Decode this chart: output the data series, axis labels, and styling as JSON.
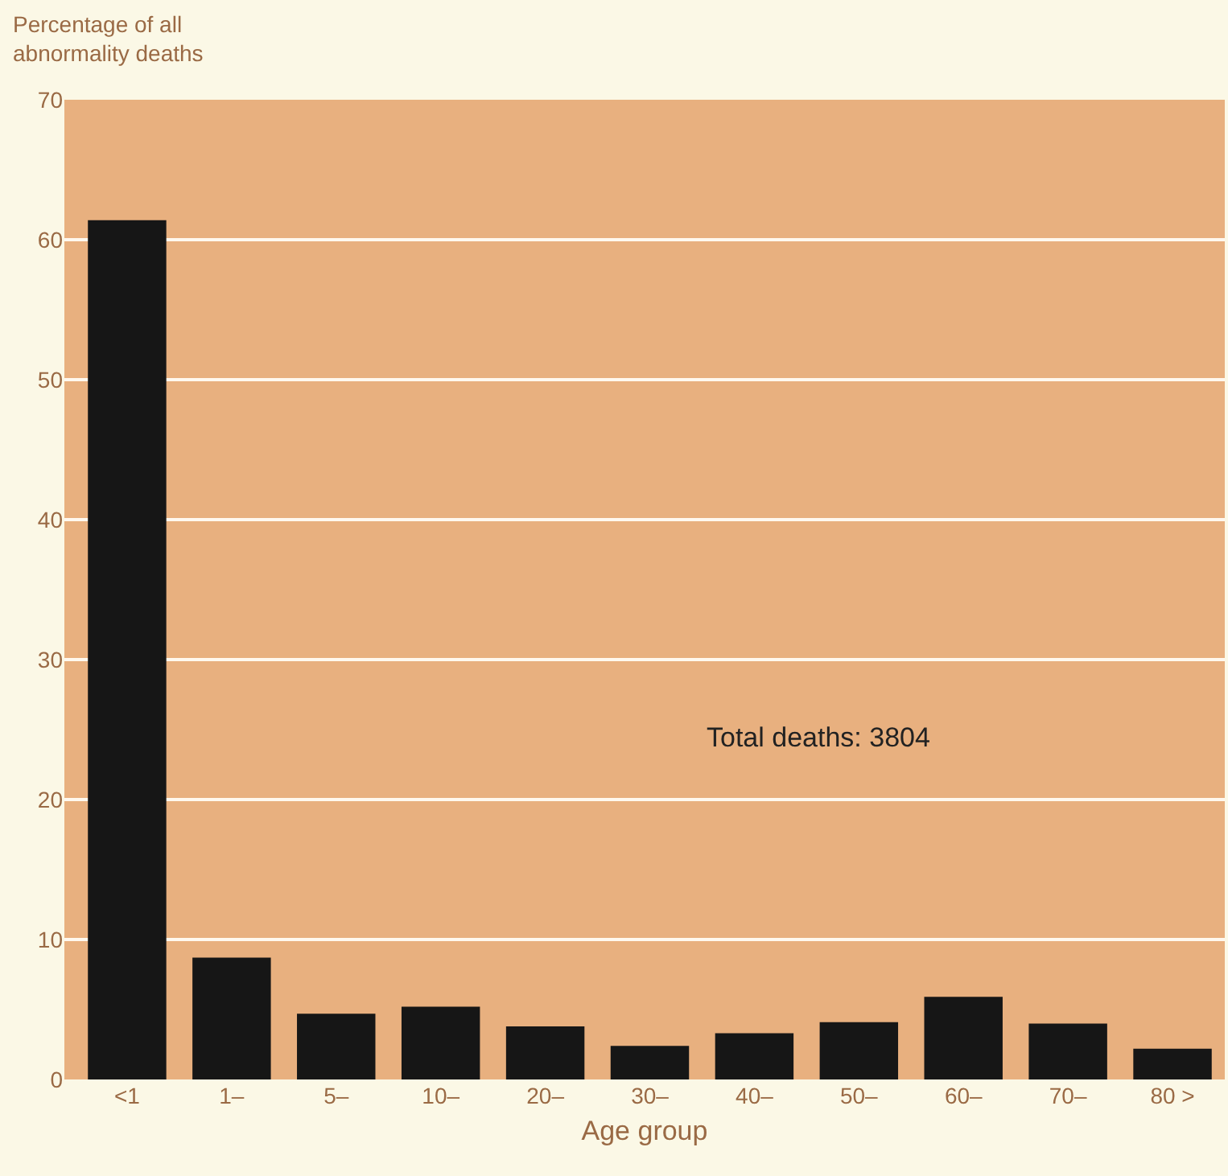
{
  "chart_data": {
    "type": "bar",
    "ylabel": "Percentage of all abnormality deaths",
    "xlabel": "Age group",
    "categories": [
      "<1",
      "1–",
      "5–",
      "10–",
      "20–",
      "30–",
      "40–",
      "50–",
      "60–",
      "70–",
      "80 >"
    ],
    "values": [
      61.4,
      8.7,
      4.7,
      5.2,
      3.8,
      2.4,
      3.3,
      4.1,
      5.9,
      4.0,
      2.2
    ],
    "color": "#161616",
    "ylim": [
      0,
      70
    ],
    "yticks": [
      0,
      10,
      20,
      30,
      40,
      50,
      60,
      70
    ],
    "grid": "y",
    "annotations": [
      "Total deaths: 3804"
    ]
  }
}
